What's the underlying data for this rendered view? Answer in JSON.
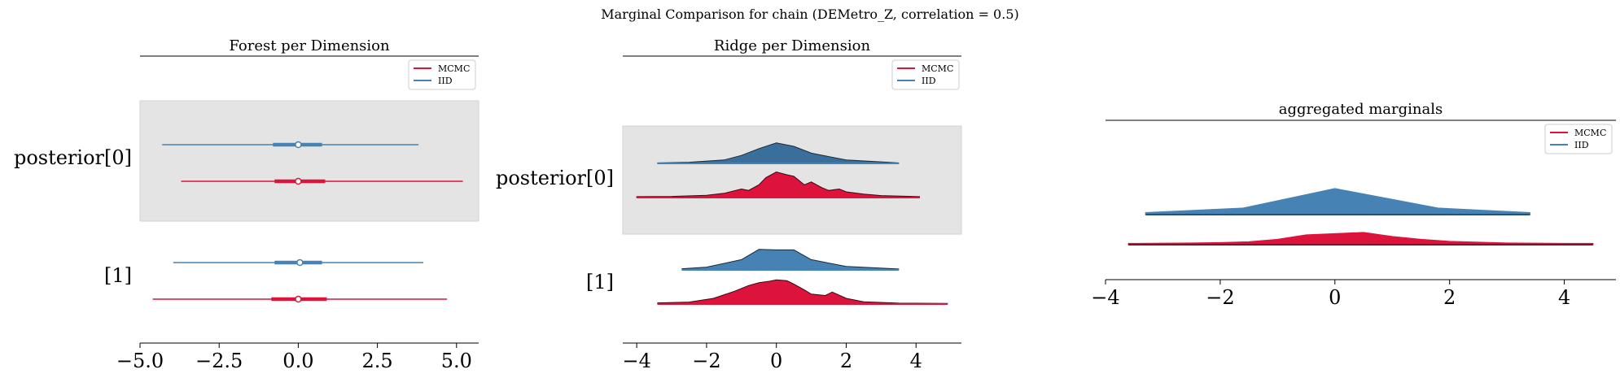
{
  "figure": {
    "suptitle": "Marginal Comparison for chain (DEMetro_Z, correlation = 0.5)"
  },
  "colors": {
    "mcmc": "#dc143c",
    "iid": "#4682b4",
    "iid_dark": "#3a6f9c",
    "band": "#e4e4e4",
    "axis": "#000000"
  },
  "chart_data": [
    {
      "type": "forest",
      "title": "Forest per Dimension",
      "xlim": [
        -5.0,
        5.7
      ],
      "xticks": [
        -5.0,
        -2.5,
        0.0,
        2.5,
        5.0
      ],
      "xticklabels": [
        "−5.0",
        "−2.5",
        "0.0",
        "2.5",
        "5.0"
      ],
      "legend": {
        "placement": "upper-right",
        "entries": [
          "MCMC",
          "IID"
        ]
      },
      "rows": [
        {
          "label": "posterior[0]",
          "shaded": true,
          "IID": {
            "hdi": [
              -4.3,
              3.8
            ],
            "iqr": [
              -0.8,
              0.75
            ],
            "median": 0.0
          },
          "MCMC": {
            "hdi": [
              -3.7,
              5.2
            ],
            "iqr": [
              -0.75,
              0.85
            ],
            "median": 0.0
          }
        },
        {
          "label": "[1]",
          "shaded": false,
          "IID": {
            "hdi": [
              -3.95,
              3.95
            ],
            "iqr": [
              -0.75,
              0.75
            ],
            "median": 0.05
          },
          "MCMC": {
            "hdi": [
              -4.6,
              4.7
            ],
            "iqr": [
              -0.85,
              0.9
            ],
            "median": 0.0
          }
        }
      ]
    },
    {
      "type": "ridgeplot",
      "title": "Ridge per Dimension",
      "xlim": [
        -4.4,
        5.3
      ],
      "xticks": [
        -4,
        -2,
        0,
        2,
        4
      ],
      "xticklabels": [
        "−4",
        "−2",
        "0",
        "2",
        "4"
      ],
      "legend": {
        "placement": "upper-right",
        "entries": [
          "MCMC",
          "IID"
        ]
      },
      "rows": [
        {
          "label": "posterior[0]",
          "shaded": true,
          "IID": {
            "x": [
              -3.4,
              -2.5,
              -1.5,
              -1.0,
              -0.5,
              0.0,
              0.5,
              1.0,
              2.0,
              3.5
            ],
            "y": [
              0.02,
              0.05,
              0.15,
              0.35,
              0.65,
              0.9,
              0.75,
              0.45,
              0.15,
              0.02
            ]
          },
          "MCMC": {
            "x": [
              -4.0,
              -3.0,
              -2.0,
              -1.5,
              -1.0,
              -0.8,
              -0.5,
              -0.3,
              0.0,
              0.3,
              0.5,
              0.8,
              1.0,
              1.3,
              1.5,
              1.8,
              2.0,
              2.5,
              3.0,
              4.1
            ],
            "y": [
              0.03,
              0.04,
              0.08,
              0.15,
              0.3,
              0.25,
              0.45,
              0.7,
              0.9,
              0.8,
              0.75,
              0.45,
              0.55,
              0.35,
              0.25,
              0.3,
              0.2,
              0.12,
              0.07,
              0.03
            ]
          }
        },
        {
          "label": "[1]",
          "shaded": false,
          "IID": {
            "x": [
              -2.7,
              -2.0,
              -1.0,
              -0.5,
              0.0,
              0.5,
              1.0,
              2.0,
              3.5
            ],
            "y": [
              0.05,
              0.12,
              0.45,
              0.9,
              0.88,
              0.88,
              0.45,
              0.15,
              0.04
            ]
          },
          "MCMC": {
            "x": [
              -3.4,
              -2.5,
              -1.8,
              -1.2,
              -0.8,
              -0.5,
              -0.2,
              0.0,
              0.3,
              0.5,
              0.8,
              1.0,
              1.4,
              1.6,
              2.0,
              2.5,
              3.5,
              4.9
            ],
            "y": [
              0.04,
              0.07,
              0.2,
              0.45,
              0.65,
              0.75,
              0.8,
              0.85,
              0.82,
              0.7,
              0.5,
              0.35,
              0.3,
              0.42,
              0.2,
              0.08,
              0.03,
              0.02
            ]
          }
        }
      ]
    },
    {
      "type": "area",
      "title": "aggregated marginals",
      "xlim": [
        -4.0,
        4.9
      ],
      "xticks": [
        -4,
        -2,
        0,
        2,
        4
      ],
      "xticklabels": [
        "−4",
        "−2",
        "0",
        "2",
        "4"
      ],
      "legend": {
        "placement": "upper-right",
        "entries": [
          "MCMC",
          "IID"
        ]
      },
      "series": [
        {
          "name": "IID",
          "x": [
            -3.3,
            -1.6,
            0.0,
            1.8,
            3.4
          ],
          "y": [
            0.03,
            0.1,
            0.4,
            0.1,
            0.03
          ]
        },
        {
          "name": "MCMC",
          "x": [
            -3.6,
            -2.5,
            -2.0,
            -1.5,
            -1.0,
            -0.5,
            0.0,
            0.5,
            1.0,
            1.5,
            2.0,
            2.5,
            3.0,
            4.0,
            4.5
          ],
          "y": [
            0.03,
            0.04,
            0.05,
            0.07,
            0.13,
            0.24,
            0.27,
            0.3,
            0.2,
            0.13,
            0.08,
            0.06,
            0.04,
            0.03,
            0.03
          ]
        }
      ]
    }
  ]
}
